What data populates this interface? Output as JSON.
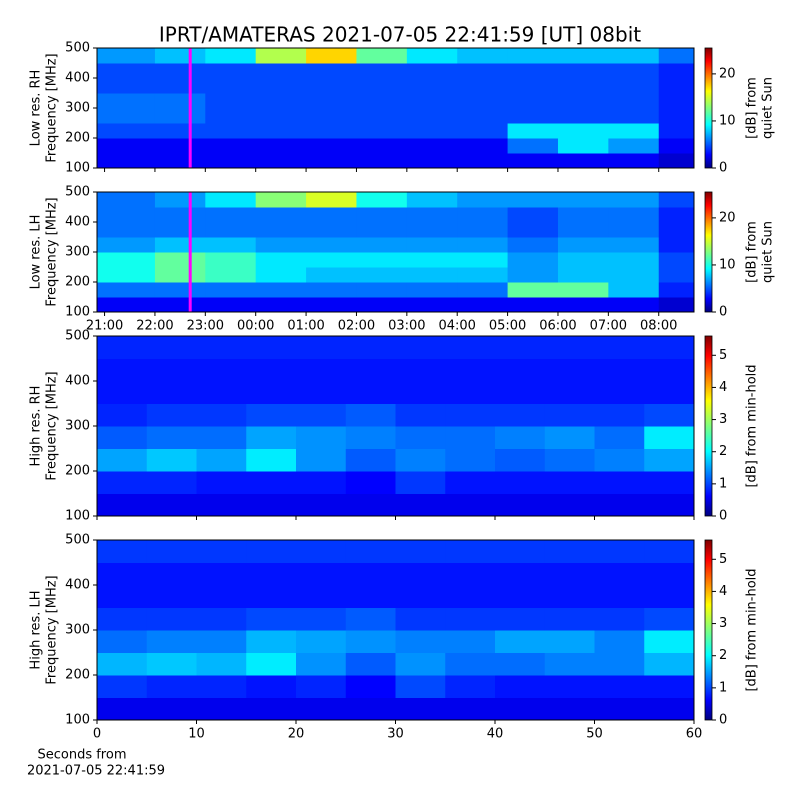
{
  "chart_data": [
    {
      "type": "heatmap",
      "title": "IPRT/AMATERAS 2021-07-05 22:41:59 [UT]   08bit",
      "ylabel": [
        "Low res. RH",
        "Frequency [MHz]"
      ],
      "colorbar_label": [
        "[dB] from",
        "quiet Sun"
      ],
      "cmap": "jet",
      "x_bins": [
        20.85,
        22,
        23,
        24,
        25,
        26,
        27,
        28,
        29,
        30,
        31,
        32,
        32.7
      ],
      "y_bins": [
        100,
        150,
        200,
        250,
        300,
        350,
        400,
        450,
        500
      ],
      "z": [
        [
          3,
          3,
          3,
          3,
          3,
          3,
          3,
          3,
          3,
          3,
          3,
          2
        ],
        [
          3,
          3,
          3,
          3,
          3,
          3,
          3,
          3,
          6,
          9,
          7,
          3
        ],
        [
          5,
          5,
          5,
          5,
          5,
          5,
          5,
          5,
          9,
          9,
          9,
          4
        ],
        [
          6,
          6,
          5,
          5,
          5,
          5,
          5,
          5,
          5,
          5,
          5,
          4
        ],
        [
          6,
          6,
          5,
          5,
          5,
          5,
          5,
          5,
          5,
          5,
          5,
          4
        ],
        [
          5,
          5,
          5,
          5,
          5,
          5,
          5,
          5,
          5,
          5,
          5,
          4
        ],
        [
          5,
          5,
          5,
          5,
          5,
          5,
          5,
          5,
          5,
          5,
          5,
          4
        ],
        [
          7,
          8,
          9,
          14,
          17,
          12,
          9,
          8,
          8,
          8,
          8,
          6
        ]
      ],
      "xlim": [
        20.85,
        32.7
      ],
      "ylim": [
        100,
        500
      ],
      "xticks": [
        21,
        22,
        23,
        24,
        25,
        26,
        27,
        28,
        29,
        30,
        31,
        32
      ],
      "xtick_labels": false,
      "yticks": [
        100,
        200,
        300,
        400,
        500
      ],
      "clim": [
        0,
        25.5
      ],
      "cticks": [
        0,
        10,
        20
      ],
      "marker": {
        "x": 22.7,
        "color": "#ff00ff"
      }
    },
    {
      "type": "heatmap",
      "ylabel": [
        "Low res. LH",
        "Frequency [MHz]"
      ],
      "colorbar_label": [
        "[dB] from",
        "quiet Sun"
      ],
      "cmap": "jet",
      "x_bins": [
        20.85,
        22,
        23,
        24,
        25,
        26,
        27,
        28,
        29,
        30,
        31,
        32,
        32.7
      ],
      "y_bins": [
        100,
        150,
        200,
        250,
        300,
        350,
        400,
        450,
        500
      ],
      "z": [
        [
          3,
          3,
          3,
          3,
          3,
          3,
          3,
          3,
          3,
          3,
          3,
          2
        ],
        [
          6,
          6,
          6,
          6,
          6,
          6,
          6,
          6,
          12,
          12,
          8,
          4
        ],
        [
          10,
          12,
          11,
          9,
          8,
          8,
          8,
          8,
          7,
          8,
          8,
          5
        ],
        [
          10,
          12,
          11,
          9,
          9,
          9,
          9,
          9,
          7,
          8,
          8,
          5
        ],
        [
          7,
          8,
          8,
          7,
          7,
          7,
          7,
          7,
          6,
          7,
          7,
          4
        ],
        [
          6,
          6,
          6,
          6,
          6,
          6,
          6,
          6,
          5,
          6,
          6,
          4
        ],
        [
          6,
          6,
          6,
          6,
          6,
          6,
          6,
          6,
          5,
          6,
          6,
          4
        ],
        [
          6,
          7,
          9,
          13,
          15,
          10,
          8,
          7,
          7,
          7,
          7,
          5
        ]
      ],
      "xlim": [
        20.85,
        32.7
      ],
      "ylim": [
        100,
        500
      ],
      "xticks": [
        {
          "value": 21,
          "label": "21:00"
        },
        {
          "value": 22,
          "label": "22:00"
        },
        {
          "value": 23,
          "label": "23:00"
        },
        {
          "value": 24,
          "label": "00:00"
        },
        {
          "value": 25,
          "label": "01:00"
        },
        {
          "value": 26,
          "label": "02:00"
        },
        {
          "value": 27,
          "label": "03:00"
        },
        {
          "value": 28,
          "label": "04:00"
        },
        {
          "value": 29,
          "label": "05:00"
        },
        {
          "value": 30,
          "label": "06:00"
        },
        {
          "value": 31,
          "label": "07:00"
        },
        {
          "value": 32,
          "label": "08:00"
        }
      ],
      "xtick_labels": true,
      "yticks": [
        100,
        200,
        300,
        400,
        500
      ],
      "clim": [
        0,
        25.5
      ],
      "cticks": [
        0,
        10,
        20
      ],
      "marker": {
        "x": 22.7,
        "color": "#ff00ff"
      }
    },
    {
      "type": "heatmap",
      "ylabel": [
        "High res. RH",
        "Frequency [MHz]"
      ],
      "colorbar_label": [
        "[dB] from min-hold"
      ],
      "cmap": "jet",
      "x_bins": [
        0,
        5,
        10,
        15,
        20,
        25,
        30,
        35,
        40,
        45,
        50,
        55,
        60
      ],
      "y_bins": [
        100,
        150,
        200,
        250,
        300,
        350,
        400,
        450,
        500
      ],
      "z": [
        [
          0.6,
          0.6,
          0.6,
          0.6,
          0.6,
          0.6,
          0.6,
          0.6,
          0.6,
          0.6,
          0.6,
          0.6
        ],
        [
          0.9,
          0.9,
          0.8,
          0.8,
          0.8,
          0.7,
          1.0,
          0.8,
          0.8,
          0.8,
          0.8,
          0.8
        ],
        [
          1.6,
          1.8,
          1.6,
          2.0,
          1.5,
          1.2,
          1.4,
          1.3,
          1.2,
          1.3,
          1.4,
          1.6
        ],
        [
          1.2,
          1.3,
          1.3,
          1.6,
          1.5,
          1.4,
          1.3,
          1.3,
          1.4,
          1.5,
          1.3,
          2.0
        ],
        [
          0.9,
          1.0,
          1.0,
          1.1,
          1.1,
          1.2,
          1.0,
          1.0,
          1.0,
          1.0,
          1.0,
          1.1
        ],
        [
          0.8,
          0.8,
          0.8,
          0.8,
          0.8,
          0.8,
          0.8,
          0.8,
          0.8,
          0.8,
          0.8,
          0.8
        ],
        [
          0.8,
          0.8,
          0.8,
          0.8,
          0.8,
          0.8,
          0.8,
          0.8,
          0.8,
          0.8,
          0.8,
          0.8
        ],
        [
          0.9,
          0.9,
          0.9,
          0.9,
          0.9,
          0.9,
          0.9,
          0.9,
          0.9,
          0.9,
          0.9,
          0.9
        ]
      ],
      "xlim": [
        0,
        60
      ],
      "ylim": [
        100,
        500
      ],
      "xticks": [
        0,
        10,
        20,
        30,
        40,
        50,
        60
      ],
      "xtick_labels": false,
      "yticks": [
        100,
        200,
        300,
        400,
        500
      ],
      "clim": [
        0,
        5.6
      ],
      "cticks": [
        0,
        1,
        2,
        3,
        4,
        5
      ]
    },
    {
      "type": "heatmap",
      "ylabel": [
        "High res. LH",
        "Frequency [MHz]"
      ],
      "colorbar_label": [
        "[dB] from min-hold"
      ],
      "cmap": "jet",
      "xlabel": [
        "Seconds from",
        "2021-07-05 22:41:59"
      ],
      "x_bins": [
        0,
        5,
        10,
        15,
        20,
        25,
        30,
        35,
        40,
        45,
        50,
        55,
        60
      ],
      "y_bins": [
        100,
        150,
        200,
        250,
        300,
        350,
        400,
        450,
        500
      ],
      "z": [
        [
          0.6,
          0.6,
          0.6,
          0.6,
          0.6,
          0.6,
          0.6,
          0.6,
          0.6,
          0.6,
          0.6,
          0.6
        ],
        [
          1.0,
          0.9,
          0.9,
          0.8,
          0.9,
          0.7,
          1.1,
          0.9,
          0.8,
          0.8,
          0.8,
          0.8
        ],
        [
          1.7,
          1.8,
          1.7,
          2.0,
          1.5,
          1.2,
          1.5,
          1.3,
          1.3,
          1.4,
          1.4,
          1.7
        ],
        [
          1.3,
          1.4,
          1.4,
          1.7,
          1.6,
          1.5,
          1.4,
          1.4,
          1.6,
          1.6,
          1.4,
          2.0
        ],
        [
          1.0,
          1.0,
          1.0,
          1.1,
          1.1,
          1.2,
          1.0,
          1.0,
          1.0,
          1.0,
          1.0,
          1.1
        ],
        [
          0.8,
          0.8,
          0.8,
          0.8,
          0.8,
          0.8,
          0.8,
          0.8,
          0.8,
          0.8,
          0.8,
          0.8
        ],
        [
          0.8,
          0.8,
          0.8,
          0.8,
          0.8,
          0.8,
          0.8,
          0.8,
          0.8,
          0.8,
          0.8,
          0.8
        ],
        [
          1.0,
          1.0,
          1.0,
          1.0,
          1.0,
          1.0,
          1.0,
          1.0,
          1.0,
          1.0,
          1.0,
          1.0
        ]
      ],
      "xlim": [
        0,
        60
      ],
      "ylim": [
        100,
        500
      ],
      "xticks": [
        0,
        10,
        20,
        30,
        40,
        50,
        60
      ],
      "xtick_labels": true,
      "yticks": [
        100,
        200,
        300,
        400,
        500
      ],
      "clim": [
        0,
        5.6
      ],
      "cticks": [
        0,
        1,
        2,
        3,
        4,
        5
      ]
    }
  ]
}
